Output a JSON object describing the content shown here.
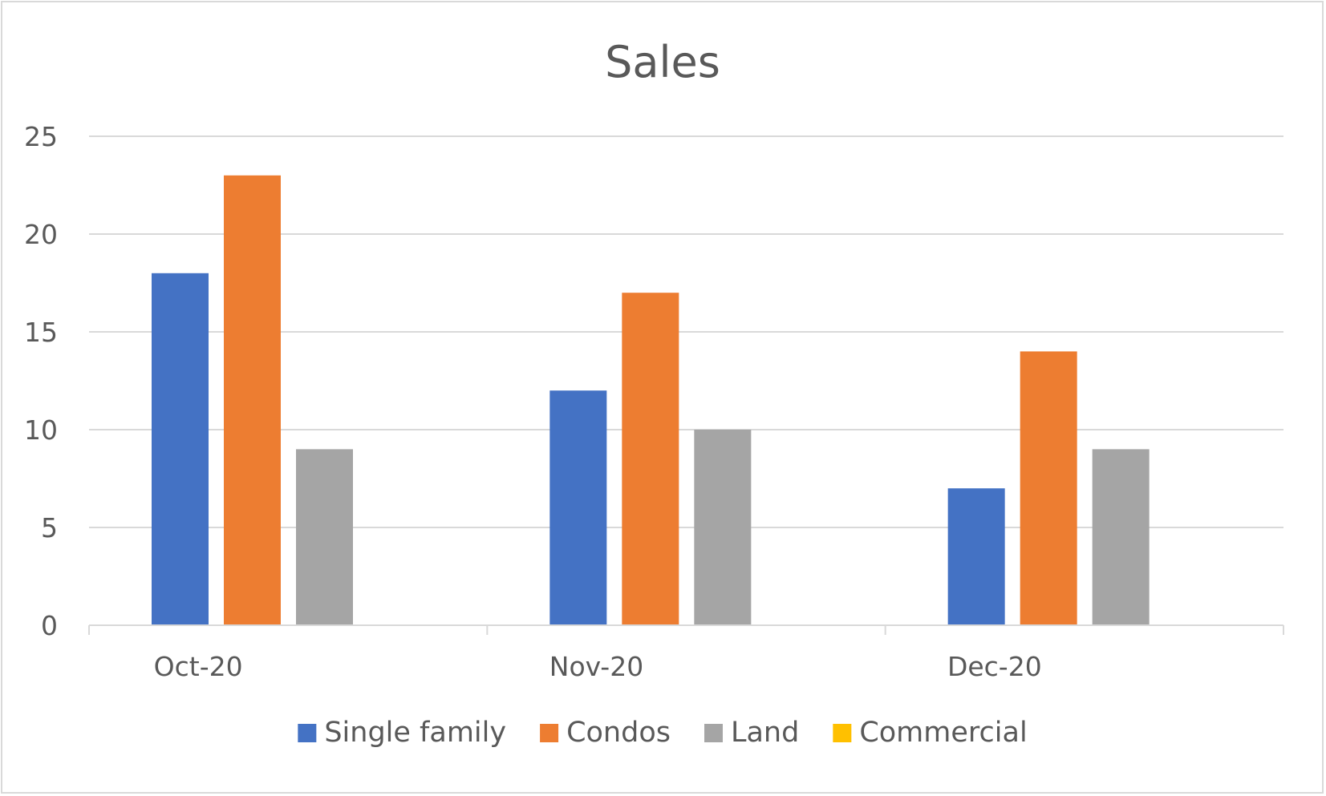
{
  "chart_data": {
    "type": "bar",
    "title": "Sales",
    "categories": [
      "Oct-20",
      "Nov-20",
      "Dec-20"
    ],
    "series": [
      {
        "name": "Single family",
        "color": "#4472C4",
        "values": [
          18,
          12,
          7
        ]
      },
      {
        "name": "Condos",
        "color": "#ED7D31",
        "values": [
          23,
          17,
          14
        ]
      },
      {
        "name": "Land",
        "color": "#A5A5A5",
        "values": [
          9,
          10,
          9
        ]
      },
      {
        "name": "Commercial",
        "color": "#FFC000",
        "values": [
          0,
          0,
          0
        ]
      }
    ],
    "xlabel": "",
    "ylabel": "",
    "ylim": [
      0,
      25
    ],
    "yticks": [
      0,
      5,
      10,
      15,
      20,
      25
    ],
    "grid": true,
    "legend_position": "bottom"
  }
}
